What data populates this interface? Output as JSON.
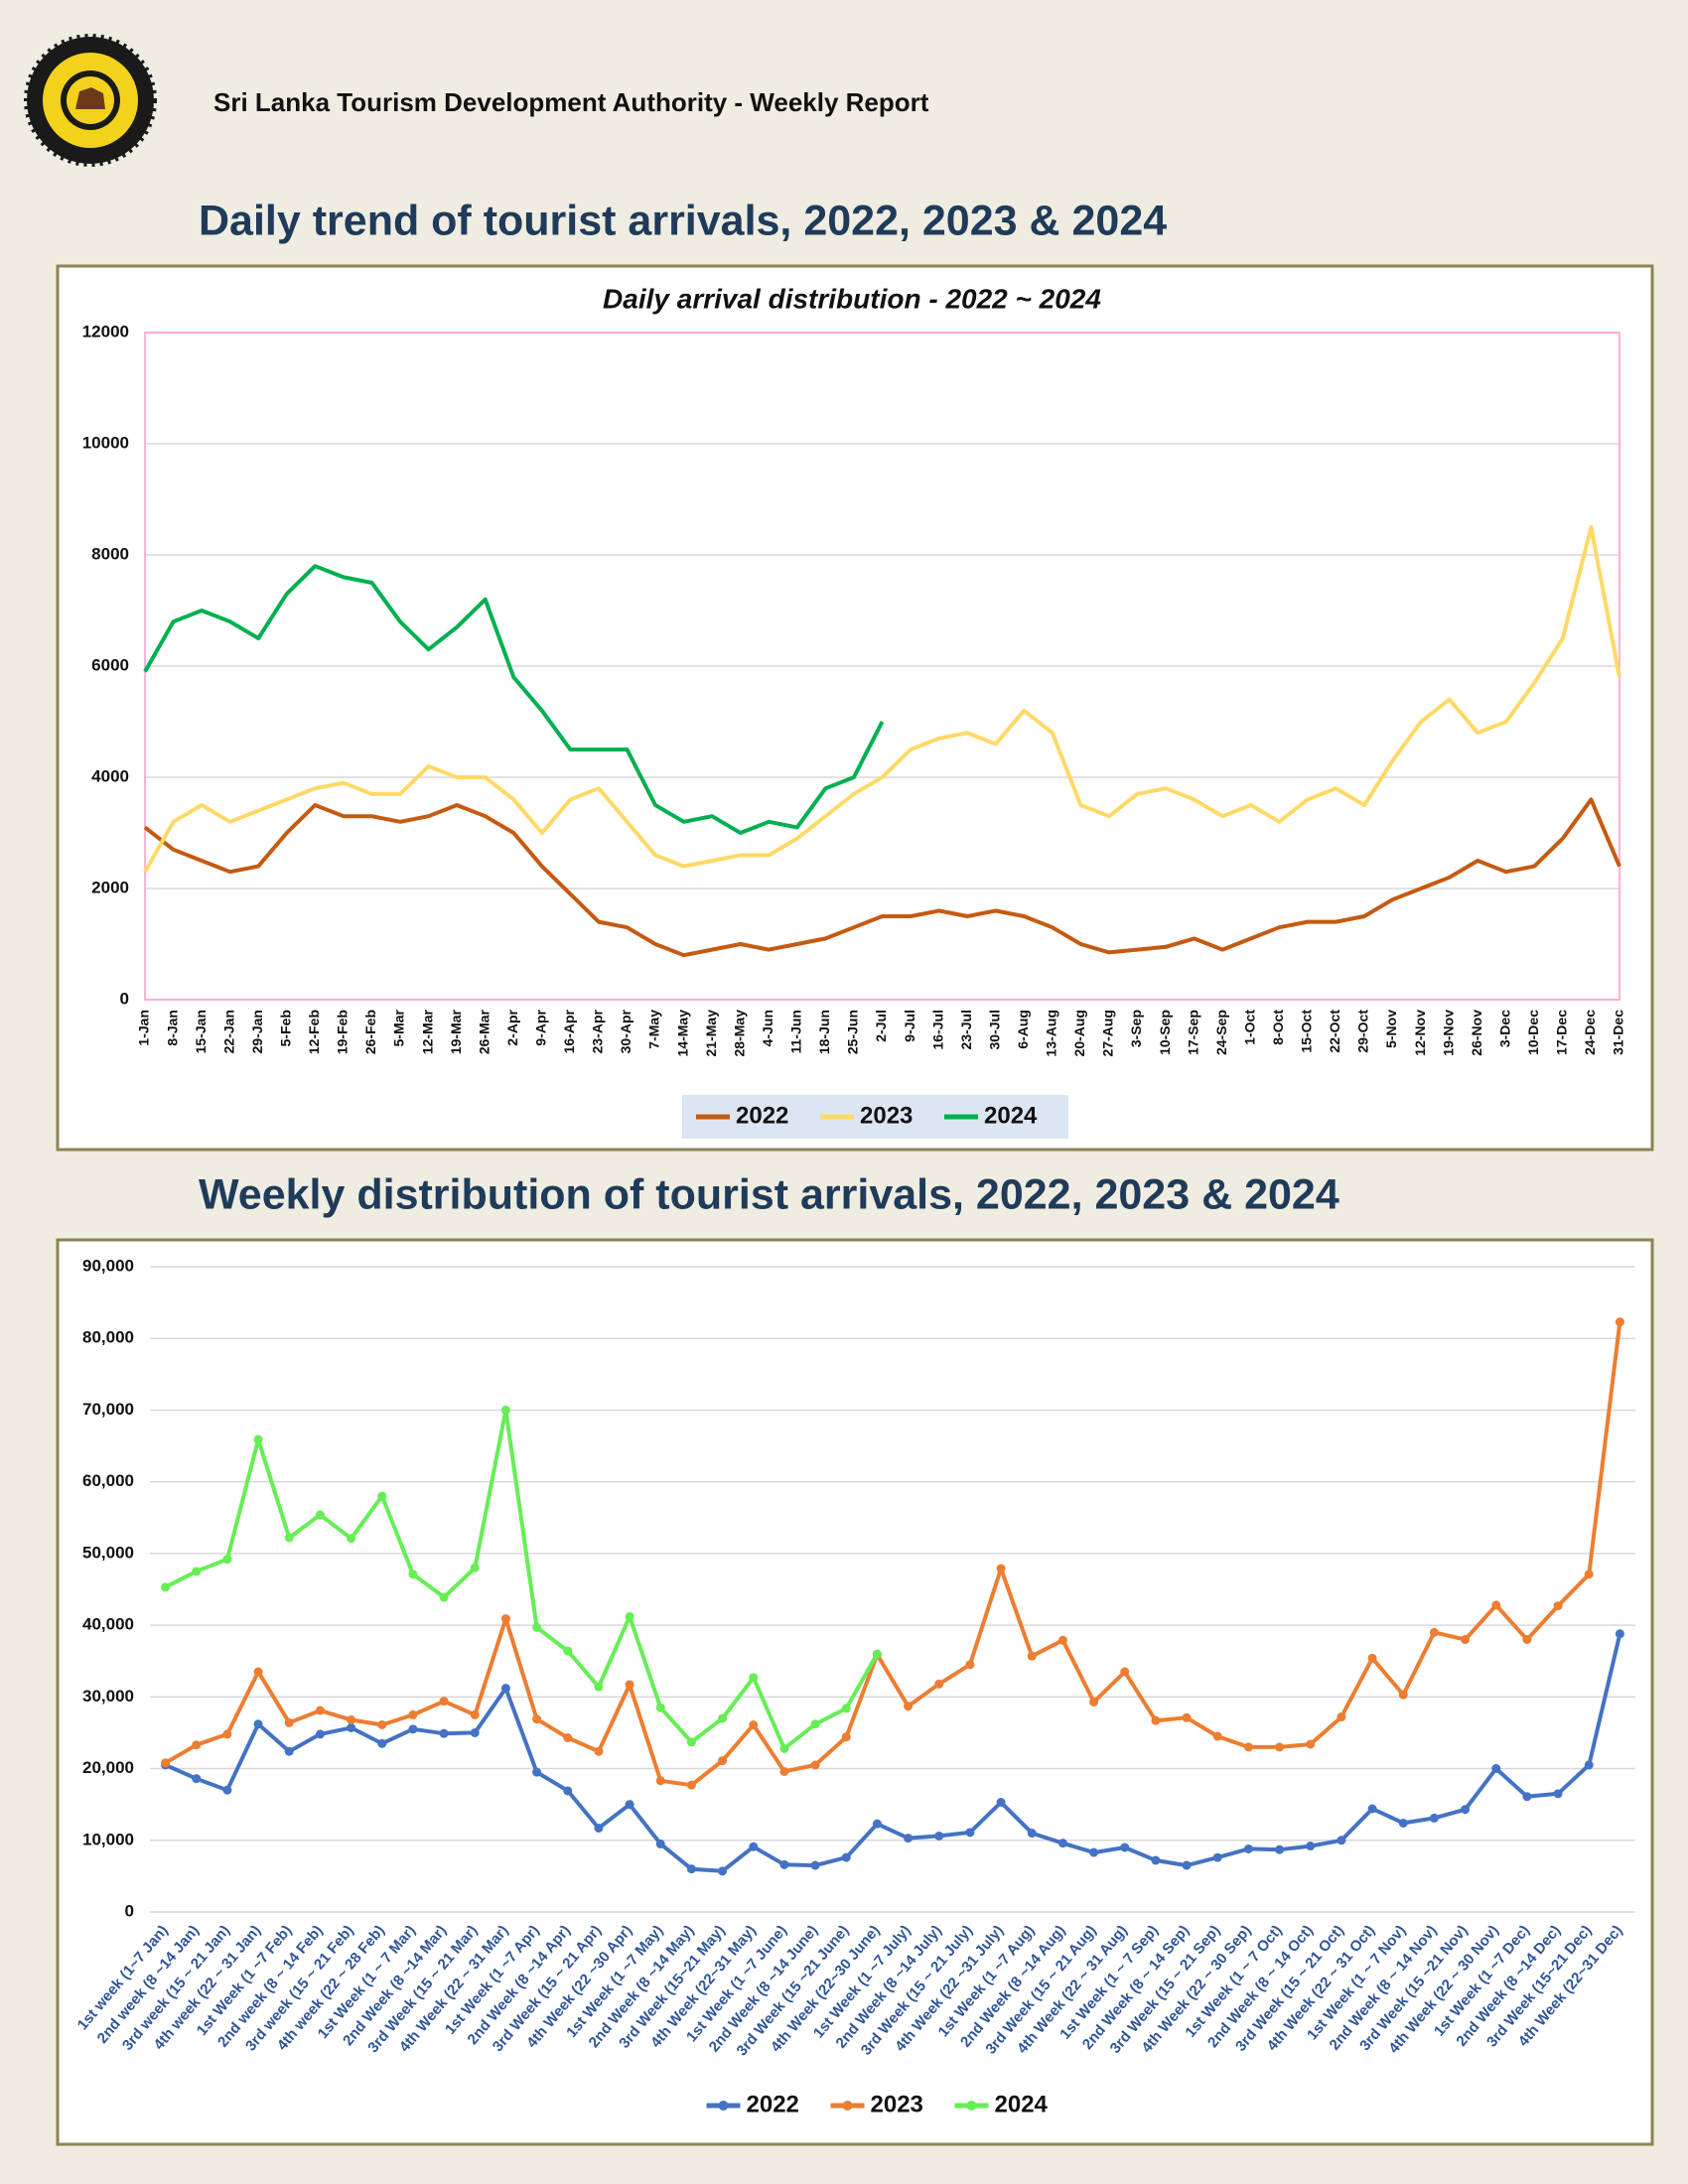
{
  "header": "Sri Lanka Tourism Development Authority - Weekly Report",
  "chart_data": [
    {
      "type": "line",
      "heading": "Daily trend of tourist arrivals, 2022, 2023 & 2024",
      "title": "Daily arrival distribution - 2022 ~ 2024",
      "categories": [
        "1-Jan",
        "8-Jan",
        "15-Jan",
        "22-Jan",
        "29-Jan",
        "5-Feb",
        "12-Feb",
        "19-Feb",
        "26-Feb",
        "5-Mar",
        "12-Mar",
        "19-Mar",
        "26-Mar",
        "2-Apr",
        "9-Apr",
        "16-Apr",
        "23-Apr",
        "30-Apr",
        "7-May",
        "14-May",
        "21-May",
        "28-May",
        "4-Jun",
        "11-Jun",
        "18-Jun",
        "25-Jun",
        "2-Jul",
        "9-Jul",
        "16-Jul",
        "23-Jul",
        "30-Jul",
        "6-Aug",
        "13-Aug",
        "20-Aug",
        "27-Aug",
        "3-Sep",
        "10-Sep",
        "17-Sep",
        "24-Sep",
        "1-Oct",
        "8-Oct",
        "15-Oct",
        "22-Oct",
        "29-Oct",
        "5-Nov",
        "12-Nov",
        "19-Nov",
        "26-Nov",
        "3-Dec",
        "10-Dec",
        "17-Dec",
        "24-Dec",
        "31-Dec"
      ],
      "series": [
        {
          "name": "2022",
          "color": "#c55a11",
          "values": [
            3100,
            2700,
            2500,
            2300,
            2400,
            3000,
            3500,
            3300,
            3300,
            3200,
            3300,
            3500,
            3300,
            3000,
            2400,
            1900,
            1400,
            1300,
            1000,
            800,
            900,
            1000,
            900,
            1000,
            1100,
            1300,
            1500,
            1500,
            1600,
            1500,
            1600,
            1500,
            1300,
            1000,
            850,
            900,
            950,
            1100,
            900,
            1100,
            1300,
            1400,
            1400,
            1500,
            1800,
            2000,
            2200,
            2500,
            2300,
            2400,
            2900,
            3600,
            2400
          ]
        },
        {
          "name": "2023",
          "color": "#ffd966",
          "values": [
            2300,
            3200,
            3500,
            3200,
            3400,
            3600,
            3800,
            3900,
            3700,
            3700,
            4200,
            4000,
            4000,
            3600,
            3000,
            3600,
            3800,
            3200,
            2600,
            2400,
            2500,
            2600,
            2600,
            2900,
            3300,
            3700,
            4000,
            4500,
            4700,
            4800,
            4600,
            5200,
            4800,
            3500,
            3300,
            3700,
            3800,
            3600,
            3300,
            3500,
            3200,
            3600,
            3800,
            3500,
            4300,
            5000,
            5400,
            4800,
            5000,
            5700,
            6500,
            8500,
            5800
          ]
        },
        {
          "name": "2024",
          "color": "#00b050",
          "values": [
            5900,
            6800,
            7000,
            6800,
            6500,
            7300,
            7800,
            7600,
            7500,
            6800,
            6300,
            6700,
            7200,
            5800,
            5200,
            4500,
            4500,
            4500,
            3500,
            3200,
            3300,
            3000,
            3200,
            3100,
            3800,
            4000,
            5000,
            null,
            null,
            null,
            null,
            null,
            null,
            null,
            null,
            null,
            null,
            null,
            null,
            null,
            null,
            null,
            null,
            null,
            null,
            null,
            null,
            null,
            null,
            null,
            null,
            null,
            null
          ]
        }
      ],
      "ylim": [
        0,
        12000
      ],
      "yticks": [
        0,
        2000,
        4000,
        6000,
        8000,
        10000,
        12000
      ],
      "grid": true,
      "legend": "bottom",
      "markers": false
    },
    {
      "type": "line",
      "heading": "Weekly distribution of tourist arrivals, 2022, 2023 & 2024",
      "categories": [
        "1st week (1~7 Jan)",
        "2nd week (8 ~14 Jan)",
        "3rd week (15 ~ 21 Jan)",
        "4th week (22 ~ 31 Jan)",
        "1st Week (1 ~7 Feb)",
        "2nd week (8 ~ 14 Feb)",
        "3rd week (15 ~ 21 Feb)",
        "4th week (22 ~ 28 Feb)",
        "1st Week (1 ~ 7 Mar)",
        "2nd Week (8 ~14 Mar)",
        "3rd Week (15 ~ 21 Mar)",
        "4th Week (22 ~ 31 Mar)",
        "1st Week (1 ~7 Apr)",
        "2nd Week (8 ~14 Apr)",
        "3rd Week (15 ~ 21 Apr)",
        "4th Week (22 ~30 Apr)",
        "1st Week (1 ~7 May)",
        "2nd Week (8 ~14 May)",
        "3rd Week (15~21 May)",
        "4th Week (22~31 May)",
        "1st Week (1 ~7 June)",
        "2nd Week (8 ~14 June)",
        "3rd Week (15 ~21 June)",
        "4th Week (22~30 June)",
        "1st Week (1 ~7 July)",
        "2nd Week (8 ~14 July)",
        "3rd Week (15 ~ 21 July)",
        "4th Week (22 ~31 July)",
        "1st Week (1 ~7 Aug)",
        "2nd Week (8 ~14 Aug)",
        "3rd Week (15 ~ 21 Aug)",
        "4th Week (22 ~ 31 Aug)",
        "1st Week (1 ~ 7 Sep)",
        "2nd Week (8 ~ 14 Sep)",
        "3rd Week (15 ~ 21 Sep)",
        "4th Week (22 ~ 30 Sep)",
        "1st Week (1 ~ 7 Oct)",
        "2nd Week (8 ~ 14 Oct)",
        "3rd Week (15 ~ 21 Oct)",
        "4th Week (22 ~ 31 Oct)",
        "1st Week (1 ~ 7 Nov)",
        "2nd Week (8 ~ 14 Nov)",
        "3rd Week (15 ~21 Nov)",
        "4th Week (22 ~ 30 Nov)",
        "1st Week (1 ~7 Dec)",
        "2nd Week (8 ~14 Dec)",
        "3rd Week (15~21 Dec)",
        "4th Week (22~31 Dec)"
      ],
      "series": [
        {
          "name": "2022",
          "color": "#4472c4",
          "values": [
            20500,
            18600,
            17000,
            26200,
            22400,
            24800,
            25700,
            23500,
            25500,
            24900,
            25000,
            31200,
            19500,
            16900,
            11700,
            15000,
            9500,
            6000,
            5700,
            9100,
            6600,
            6500,
            7600,
            12300,
            10300,
            10600,
            11100,
            15300,
            11000,
            9600,
            8300,
            9000,
            7200,
            6500,
            7600,
            8800,
            8700,
            9200,
            10000,
            14400,
            12400,
            13100,
            14300,
            20000,
            16100,
            16500,
            20500,
            38800
          ]
        },
        {
          "name": "2023",
          "color": "#ed7d31",
          "values": [
            20800,
            23300,
            24800,
            33500,
            26400,
            28100,
            26800,
            26100,
            27500,
            29400,
            27500,
            40900,
            26900,
            24300,
            22400,
            31700,
            18300,
            17700,
            21100,
            26100,
            19600,
            20500,
            24400,
            35900,
            28700,
            31800,
            34500,
            47900,
            35700,
            37900,
            29300,
            33500,
            26700,
            27100,
            24500,
            23000,
            23000,
            23400,
            27200,
            35400,
            30300,
            39000,
            38000,
            42800,
            38000,
            42700,
            47100,
            82300
          ]
        },
        {
          "name": "2024",
          "color": "#66ee55",
          "values": [
            45300,
            47500,
            49200,
            65900,
            52200,
            55400,
            52100,
            58000,
            47100,
            43900,
            48000,
            70000,
            39700,
            36400,
            31400,
            41200,
            28500,
            23700,
            27000,
            32700,
            22800,
            26200,
            28400,
            36000,
            null,
            null,
            null,
            null,
            null,
            null,
            null,
            null,
            null,
            null,
            null,
            null,
            null,
            null,
            null,
            null,
            null,
            null,
            null,
            null,
            null,
            null,
            null,
            null
          ]
        }
      ],
      "ylim": [
        0,
        90000
      ],
      "yticks": [
        0,
        {
          "value": 10000,
          "label": "10,000"
        },
        {
          "value": 20000,
          "label": "20,000"
        },
        {
          "value": 30000,
          "label": "30,000"
        },
        {
          "value": 40000,
          "label": "40,000"
        },
        {
          "value": 50000,
          "label": "50,000"
        },
        {
          "value": 60000,
          "label": "60,000"
        },
        {
          "value": 70000,
          "label": "70,000"
        },
        {
          "value": 80000,
          "label": "80,000"
        },
        {
          "value": 90000,
          "label": "90,000"
        }
      ],
      "grid": true,
      "legend": "bottom",
      "markers": true
    }
  ]
}
